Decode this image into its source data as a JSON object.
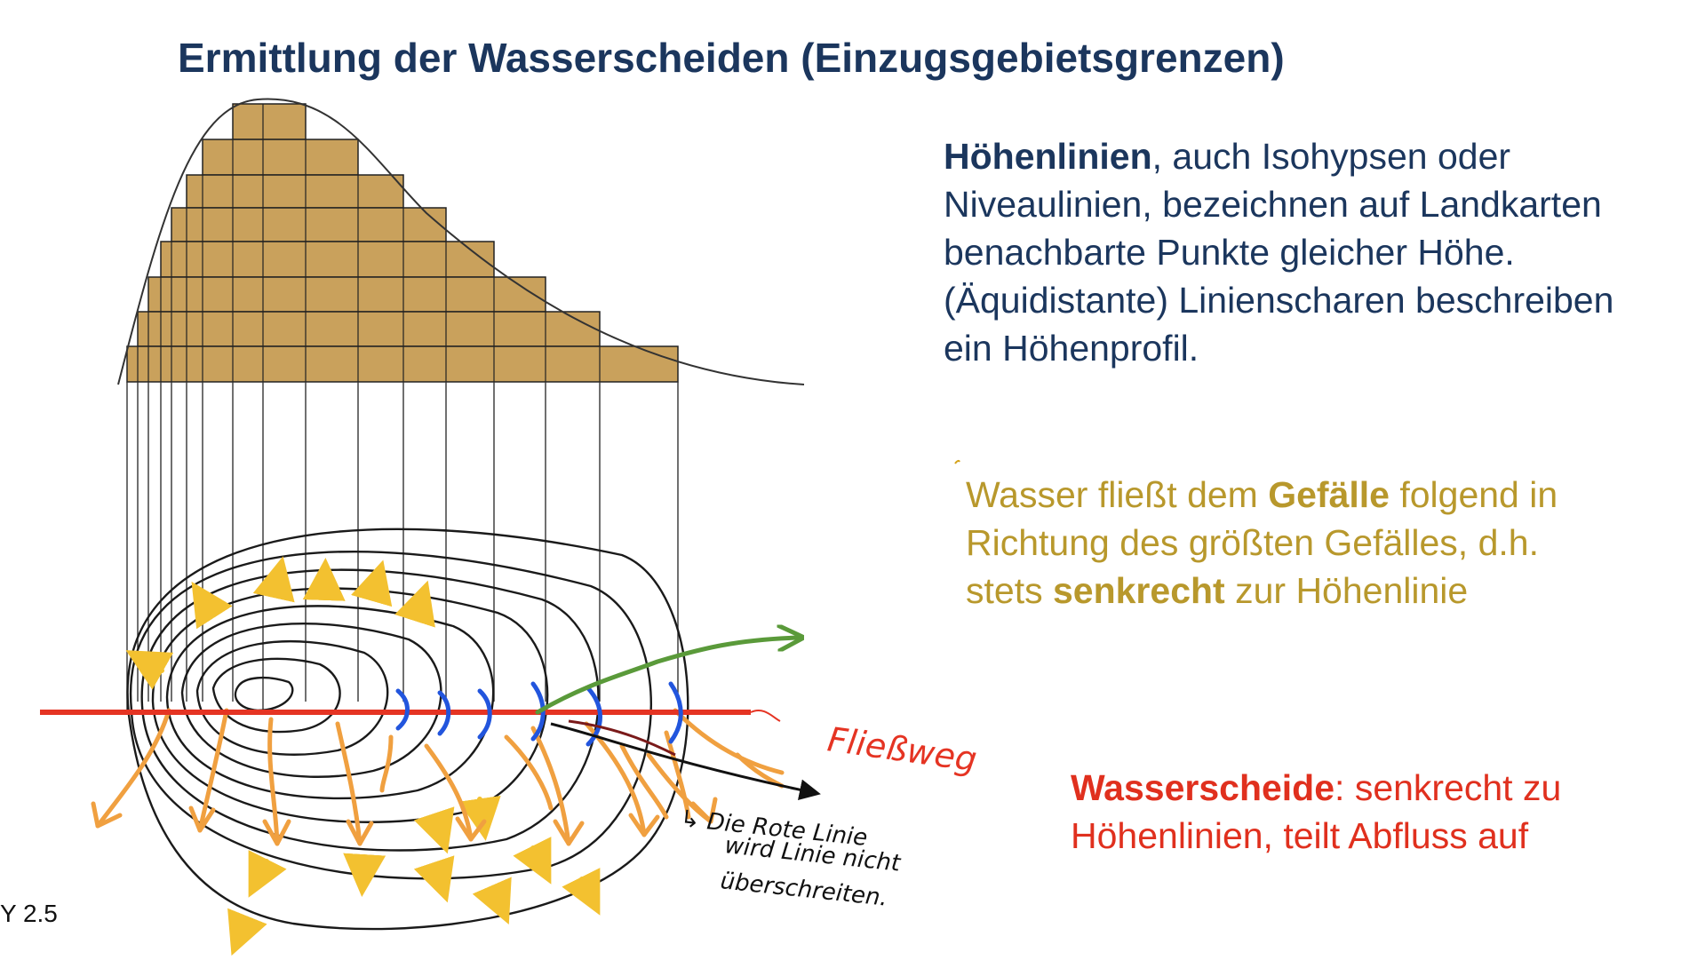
{
  "title": "Ermittlung der Wasserscheiden (Einzugsgebietsgrenzen)",
  "hoehenlinien": {
    "term": "Höhenlinien",
    "line1_rest": ", auch Isohypsen oder",
    "line2": "Niveaulinien, bezeichnen auf Landkarten",
    "line3": "benachbarte Punkte gleicher Höhe.",
    "line4": "(Äquidistante) Linienscharen beschreiben",
    "line5": "ein Höhenprofil."
  },
  "gefaelle": {
    "line1_pre": "Wasser fließt dem ",
    "line1_bold": "Gefälle",
    "line1_post": " folgend in",
    "line2": "Richtung des größten Gefälles, d.h.",
    "line3_pre": "stets ",
    "line3_bold": "senkrecht",
    "line3_post": " zur Höhenlinie"
  },
  "wasserscheide": {
    "term": "Wasserscheide",
    "line1_rest": ": senkrecht zu",
    "line2": "Höhenlinien, teilt Abfluss auf"
  },
  "slide_ref": "Y 2.5",
  "handwriting": {
    "fliessweg": "Fließweg",
    "note_line1": "↳ Die Rote Linie",
    "note_line2": "wird Linie nicht",
    "note_line3": "überschreiten."
  },
  "colors": {
    "navy": "#1b365d",
    "gold": "#b8982c",
    "red": "#e0301e",
    "bar_fill": "#c9a15c",
    "arrow_orange": "#f0a040",
    "arrow_yellow": "#f3c130",
    "blue_marks": "#2255dd",
    "green_path": "#5a9a3a"
  },
  "icons": {
    "flow_arrow": "arrow-icon"
  }
}
